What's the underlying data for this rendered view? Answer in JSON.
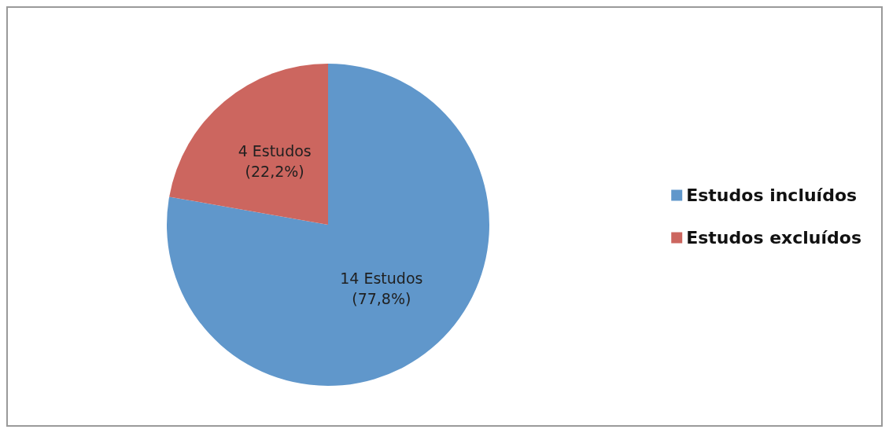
{
  "chart_data": {
    "type": "pie",
    "categories": [
      "Estudos incluídos",
      "Estudos excluídos"
    ],
    "values": [
      14,
      4
    ],
    "colors": [
      "#6097cb",
      "#cc665f"
    ],
    "value_labels": [
      "14 Estudos\n(77,8%)",
      "4 Estudos\n(22,2%)"
    ],
    "legend": "right"
  }
}
